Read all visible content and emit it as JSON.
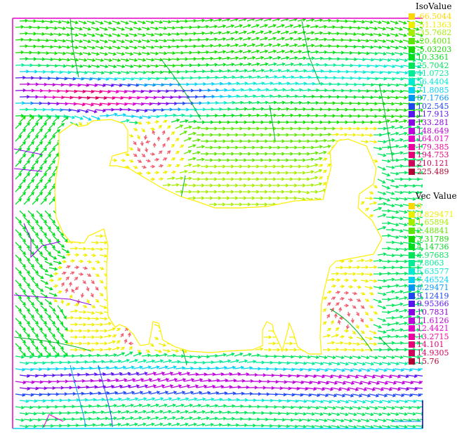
{
  "chart_data": {
    "type": "vector_field",
    "iso_legend": {
      "title": "IsoValue",
      "entries": [
        {
          "label": "-66.5044",
          "color": "#ffd700"
        },
        {
          "label": "-51.1363",
          "color": "#f0ee00"
        },
        {
          "label": "-35.7682",
          "color": "#a6ee00"
        },
        {
          "label": "-20.4001",
          "color": "#5fe600"
        },
        {
          "label": "-5.03203",
          "color": "#14dc00"
        },
        {
          "label": "10.3361",
          "color": "#00dc1e"
        },
        {
          "label": "25.7042",
          "color": "#00e45a"
        },
        {
          "label": "41.0723",
          "color": "#00ec96"
        },
        {
          "label": "56.4404",
          "color": "#00ecd2"
        },
        {
          "label": "71.8085",
          "color": "#00d2f5"
        },
        {
          "label": "87.1766",
          "color": "#0096f5"
        },
        {
          "label": "102.545",
          "color": "#1e46f5"
        },
        {
          "label": "117.913",
          "color": "#5a14f0"
        },
        {
          "label": "133.281",
          "color": "#8c00e6"
        },
        {
          "label": "148.649",
          "color": "#be00dc"
        },
        {
          "label": "164.017",
          "color": "#e600c8"
        },
        {
          "label": "179.385",
          "color": "#f000a0"
        },
        {
          "label": "194.753",
          "color": "#e60078"
        },
        {
          "label": "210.121",
          "color": "#d2005a"
        },
        {
          "label": "225.489",
          "color": "#b40032"
        }
      ]
    },
    "vec_legend": {
      "title": "Vec Value",
      "entries": [
        {
          "label": "0",
          "color": "#ffd700"
        },
        {
          "label": "0.829471",
          "color": "#f0ee00"
        },
        {
          "label": "1.65894",
          "color": "#a6ee00"
        },
        {
          "label": "2.48841",
          "color": "#5fe600"
        },
        {
          "label": "3.31789",
          "color": "#14dc00"
        },
        {
          "label": "4.14736",
          "color": "#00dc1e"
        },
        {
          "label": "4.97683",
          "color": "#00e45a"
        },
        {
          "label": "5.8063",
          "color": "#00ec96"
        },
        {
          "label": "6.63577",
          "color": "#00ecd2"
        },
        {
          "label": "7.46524",
          "color": "#00d2f5"
        },
        {
          "label": "8.29471",
          "color": "#0096f5"
        },
        {
          "label": "9.12419",
          "color": "#1e46f5"
        },
        {
          "label": "9.95366",
          "color": "#5a14f0"
        },
        {
          "label": "10.7831",
          "color": "#8c00e6"
        },
        {
          "label": "11.6126",
          "color": "#be00dc"
        },
        {
          "label": "12.4421",
          "color": "#e600c8"
        },
        {
          "label": "13.2715",
          "color": "#f000a0"
        },
        {
          "label": "14.101",
          "color": "#e60078"
        },
        {
          "label": "14.9305",
          "color": "#d2005a"
        },
        {
          "label": "15.76",
          "color": "#b40032"
        }
      ]
    },
    "obstacle_color": "#ffee00",
    "domain_border_colors": {
      "top": "#e600c8",
      "bottom": "#00d2f5",
      "left": "#e600c8",
      "right": "#0000aa"
    }
  }
}
